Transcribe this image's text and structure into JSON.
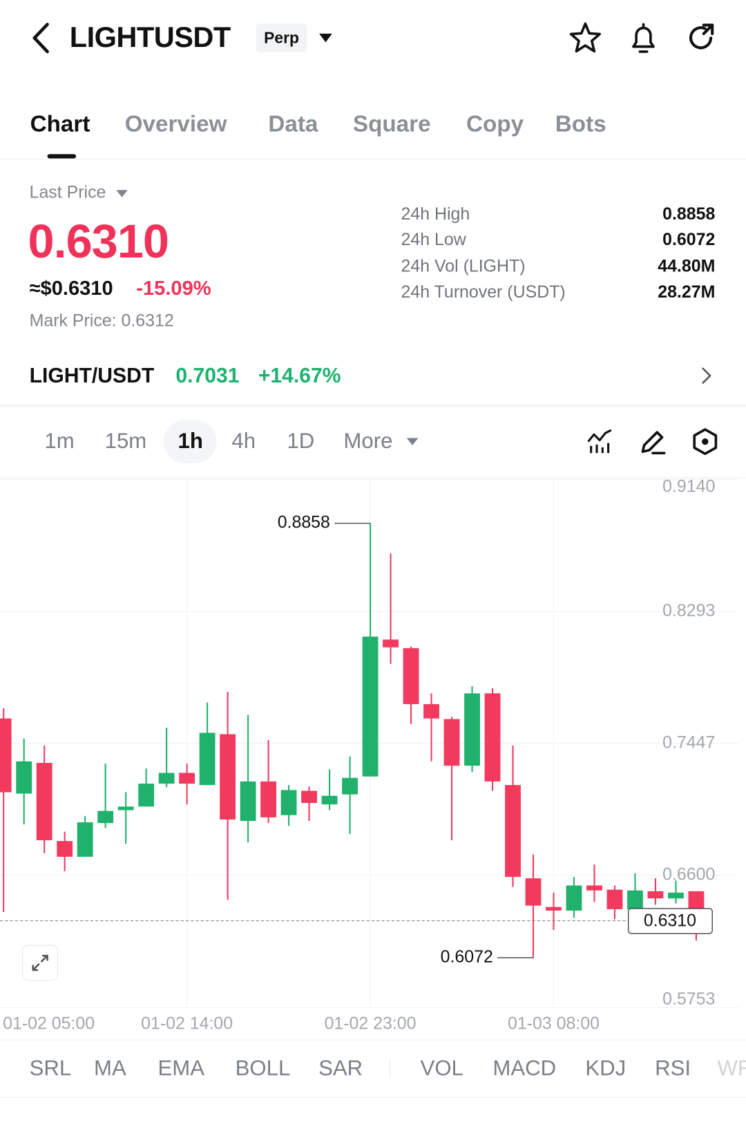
{
  "header": {
    "title": "LIGHTUSDT",
    "badge": "Perp"
  },
  "tabs": [
    "Chart",
    "Overview",
    "Data",
    "Square",
    "Copy",
    "Bots"
  ],
  "price": {
    "label": "Last Price",
    "last": "0.6310",
    "usd": "≈$0.6310",
    "change": "-15.09%",
    "mark": "Mark Price: 0.6312"
  },
  "stats": [
    [
      "24h  High",
      "0.8858"
    ],
    [
      "24h  Low",
      "0.6072"
    ],
    [
      "24h  Vol (LIGHT)",
      "44.80M"
    ],
    [
      "24h  Turnover (USDT)",
      "28.27M"
    ]
  ],
  "spot": {
    "pair": "LIGHT/USDT",
    "price": "0.7031",
    "change": "+14.67%"
  },
  "intervals": [
    "1m",
    "15m",
    "1h",
    "4h",
    "1D",
    "More"
  ],
  "indicators": [
    "SRL",
    "MA",
    "EMA",
    "BOLL",
    "SAR",
    "VOL",
    "MACD",
    "KDJ",
    "RSI",
    "WR"
  ],
  "chart_data": {
    "type": "candlestick",
    "categories": [
      "01-02 05:00",
      null,
      null,
      null,
      null,
      null,
      null,
      null,
      null,
      "01-02 14:00",
      null,
      null,
      null,
      null,
      null,
      null,
      null,
      null,
      "01-02 23:00",
      null,
      null,
      null,
      null,
      null,
      null,
      null,
      null,
      "01-03 08:00",
      null,
      null,
      null,
      null,
      null,
      null,
      null
    ],
    "open": [
      0.7607,
      0.7125,
      0.7322,
      0.6821,
      0.672,
      0.6936,
      0.7019,
      0.7042,
      0.7189,
      0.7258,
      0.718,
      0.7506,
      0.695,
      0.7203,
      0.6987,
      0.7143,
      0.7056,
      0.712,
      0.7235,
      0.8113,
      0.8058,
      0.7699,
      0.7603,
      0.7304,
      0.7768,
      0.718,
      0.6582,
      0.6398,
      0.6375,
      0.6536,
      0.6509,
      0.6384,
      0.6499,
      0.6453,
      0.6499
    ],
    "high": [
      0.7672,
      0.7479,
      0.7433,
      0.6881,
      0.6982,
      0.7318,
      0.7134,
      0.7286,
      0.7548,
      0.7318,
      0.7709,
      0.7778,
      0.763,
      0.7469,
      0.718,
      0.7171,
      0.7281,
      0.7364,
      0.8858,
      0.8665,
      0.8067,
      0.7768,
      0.7617,
      0.7814,
      0.7801,
      0.7433,
      0.6734,
      0.649,
      0.6591,
      0.667,
      0.6536,
      0.6614,
      0.6582,
      0.6568,
      0.6499
    ],
    "low": [
      0.6366,
      0.6927,
      0.6743,
      0.6628,
      0.672,
      0.6904,
      0.6803,
      0.7042,
      0.7166,
      0.7056,
      0.718,
      0.6444,
      0.6812,
      0.6936,
      0.6918,
      0.695,
      0.7019,
      0.6867,
      0.7235,
      0.7957,
      0.7571,
      0.7332,
      0.6826,
      0.7263,
      0.7143,
      0.6527,
      0.6072,
      0.6251,
      0.6329,
      0.643,
      0.632,
      0.6352,
      0.6412,
      0.6421,
      0.6182
    ],
    "close": [
      0.7134,
      0.7332,
      0.6826,
      0.672,
      0.6941,
      0.7014,
      0.7042,
      0.7189,
      0.7258,
      0.7189,
      0.7515,
      0.6959,
      0.7203,
      0.6973,
      0.7148,
      0.7065,
      0.7111,
      0.7226,
      0.8132,
      0.8063,
      0.7699,
      0.7607,
      0.7304,
      0.7768,
      0.7203,
      0.6591,
      0.6407,
      0.6375,
      0.6536,
      0.6504,
      0.6384,
      0.6504,
      0.6453,
      0.649,
      0.631
    ],
    "up_color": "#20b26c",
    "down_color": "#f23a5f",
    "ylim": [
      0.5753,
      0.914
    ],
    "yticks": [
      {
        "value": 0.914,
        "label": "0.9140"
      },
      0.8293,
      0.7447,
      {
        "value": 0.66,
        "label": "0.6600"
      },
      0.5753
    ],
    "grid": true,
    "last_price": {
      "value": 0.631,
      "label": "0.6310"
    }
  }
}
